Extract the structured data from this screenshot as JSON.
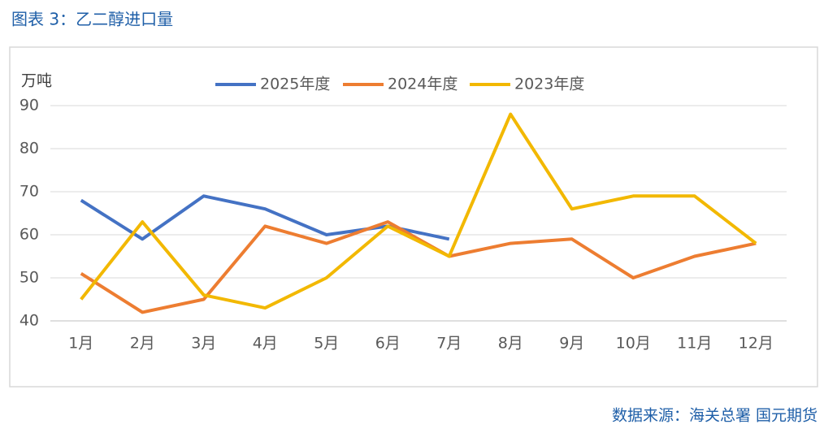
{
  "chart_data": {
    "type": "line",
    "title": "图表 3：乙二醇进口量",
    "y_label": "万吨",
    "source": "数据来源：海关总署 国元期货",
    "categories": [
      "1月",
      "2月",
      "3月",
      "4月",
      "5月",
      "6月",
      "7月",
      "8月",
      "9月",
      "10月",
      "11月",
      "12月"
    ],
    "series": [
      {
        "name": "2025年度",
        "color": "#4472c4",
        "values": [
          68,
          59,
          69,
          66,
          60,
          62,
          59,
          null,
          null,
          null,
          null,
          null
        ]
      },
      {
        "name": "2024年度",
        "color": "#ed7d31",
        "values": [
          51,
          42,
          45,
          62,
          58,
          63,
          55,
          58,
          59,
          50,
          55,
          58
        ]
      },
      {
        "name": "2023年度",
        "color": "#f2b800",
        "values": [
          45,
          63,
          46,
          43,
          50,
          62,
          55,
          88,
          66,
          69,
          69,
          58
        ]
      }
    ],
    "ylim": [
      40,
      90
    ],
    "yticks": [
      40,
      50,
      60,
      70,
      80,
      90
    ],
    "grid": true,
    "legend": "top"
  }
}
